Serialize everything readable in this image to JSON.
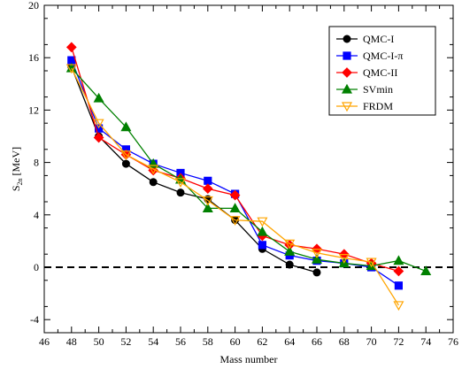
{
  "chart_data": {
    "type": "line",
    "xlabel": "Mass number",
    "ylabel_main": "S",
    "ylabel_sub": "2n",
    "ylabel_unit": " [MeV]",
    "xlim": [
      46,
      76
    ],
    "ylim": [
      -5,
      20
    ],
    "xticks": [
      46,
      48,
      50,
      52,
      54,
      56,
      58,
      60,
      62,
      64,
      66,
      68,
      70,
      72,
      74,
      76
    ],
    "yticks": [
      -4,
      0,
      4,
      8,
      12,
      16,
      20
    ],
    "reference_line": {
      "y": 0,
      "style": "dashed"
    },
    "legend_position": "top-right",
    "series": [
      {
        "name": "QMC-I",
        "color": "#000000",
        "marker": "circle",
        "x": [
          48,
          50,
          52,
          54,
          56,
          58,
          60,
          62,
          64,
          66
        ],
        "y": [
          15.3,
          10.0,
          7.9,
          6.5,
          5.7,
          5.2,
          3.6,
          1.4,
          0.2,
          -0.4
        ]
      },
      {
        "name": "QMC-I-π",
        "color": "#0000ff",
        "marker": "square",
        "x": [
          48,
          50,
          52,
          54,
          56,
          58,
          60,
          62,
          64,
          66,
          68,
          70,
          72
        ],
        "y": [
          15.8,
          10.6,
          9.0,
          7.9,
          7.2,
          6.6,
          5.6,
          1.7,
          0.9,
          0.5,
          0.3,
          0.0,
          -1.4
        ]
      },
      {
        "name": "QMC-II",
        "color": "#ff0000",
        "marker": "diamond",
        "x": [
          48,
          50,
          52,
          54,
          56,
          58,
          60,
          62,
          64,
          66,
          68,
          70,
          72
        ],
        "y": [
          16.8,
          9.9,
          8.6,
          7.4,
          6.8,
          6.0,
          5.5,
          2.4,
          1.7,
          1.4,
          1.0,
          0.3,
          -0.3
        ]
      },
      {
        "name": "SVmin",
        "color": "#008000",
        "marker": "triangle-up",
        "x": [
          48,
          50,
          52,
          54,
          56,
          58,
          60,
          62,
          64,
          66,
          68,
          70,
          72,
          74
        ],
        "y": [
          15.2,
          12.9,
          10.7,
          7.9,
          6.7,
          4.5,
          4.5,
          2.7,
          1.2,
          0.6,
          0.3,
          0.1,
          0.5,
          -0.3
        ]
      },
      {
        "name": "FRDM",
        "color": "#ffa500",
        "marker": "triangle-down",
        "x": [
          48,
          50,
          52,
          54,
          56,
          58,
          60,
          62,
          64,
          66,
          68,
          70,
          72
        ],
        "y": [
          15.2,
          11.0,
          8.6,
          7.5,
          6.5,
          5.1,
          3.6,
          3.5,
          1.8,
          1.1,
          0.7,
          0.4,
          -2.9
        ]
      }
    ]
  }
}
